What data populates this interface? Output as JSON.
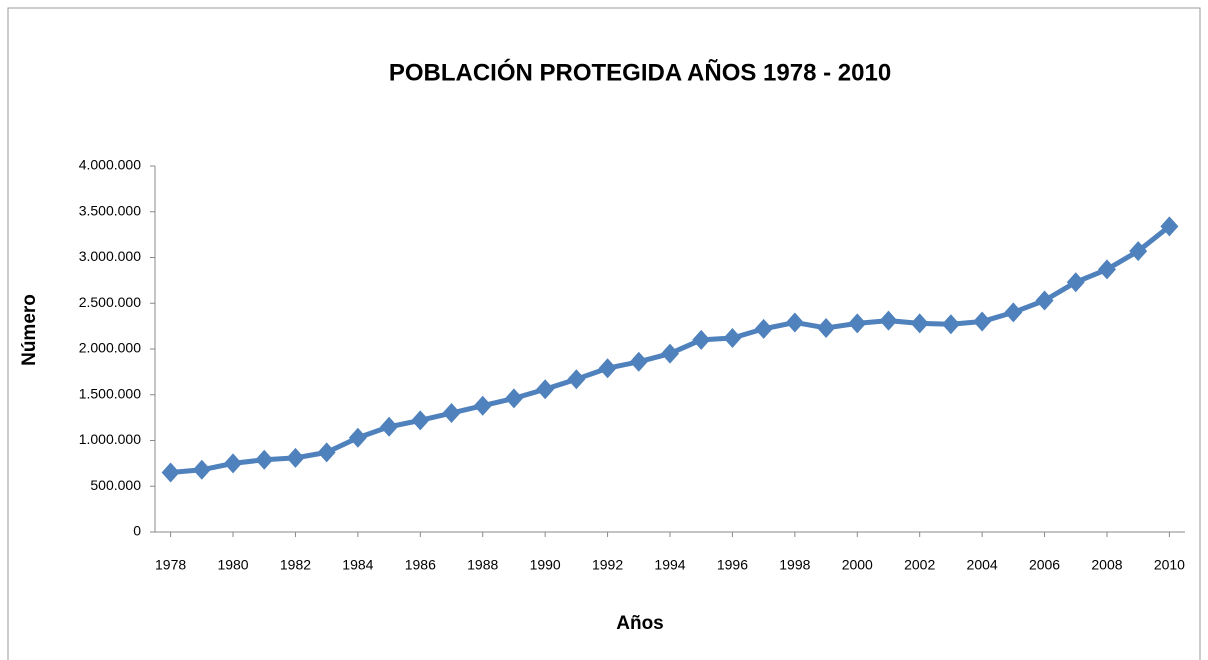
{
  "chart_data": {
    "type": "line",
    "title": "POBLACIÓN PROTEGIDA AÑOS 1978 - 2010",
    "x_label": "Años",
    "y_label": "Número",
    "x": [
      1978,
      1979,
      1980,
      1981,
      1982,
      1983,
      1984,
      1985,
      1986,
      1987,
      1988,
      1989,
      1990,
      1991,
      1992,
      1993,
      1994,
      1995,
      1996,
      1997,
      1998,
      1999,
      2000,
      2001,
      2002,
      2003,
      2004,
      2005,
      2006,
      2007,
      2008,
      2009,
      2010
    ],
    "series": [
      {
        "name": "Número",
        "color": "#4f81bd",
        "values": [
          650000,
          680000,
          750000,
          790000,
          810000,
          870000,
          1030000,
          1150000,
          1220000,
          1300000,
          1380000,
          1460000,
          1560000,
          1670000,
          1790000,
          1860000,
          1950000,
          2100000,
          2120000,
          2220000,
          2290000,
          2230000,
          2280000,
          2310000,
          2280000,
          2270000,
          2300000,
          2400000,
          2530000,
          2730000,
          2870000,
          3070000,
          3340000
        ]
      }
    ],
    "xlim": [
      1977.5,
      2010.5
    ],
    "xticks": [
      1978,
      1980,
      1982,
      1984,
      1986,
      1988,
      1990,
      1992,
      1994,
      1996,
      1998,
      2000,
      2002,
      2004,
      2006,
      2008,
      2010
    ],
    "ylim": [
      0,
      4000000
    ],
    "yticks": [
      0,
      {
        "value": 500000,
        "label": "500.000"
      },
      {
        "value": 1000000,
        "label": "1.000.000"
      },
      {
        "value": 1500000,
        "label": "1.500.000"
      },
      {
        "value": 2000000,
        "label": "2.000.000"
      },
      {
        "value": 2500000,
        "label": "2.500.000"
      },
      {
        "value": 3000000,
        "label": "3.000.000"
      },
      {
        "value": 3500000,
        "label": "3.500.000"
      },
      {
        "value": 4000000,
        "label": "4.000.000"
      }
    ],
    "grid": false
  }
}
